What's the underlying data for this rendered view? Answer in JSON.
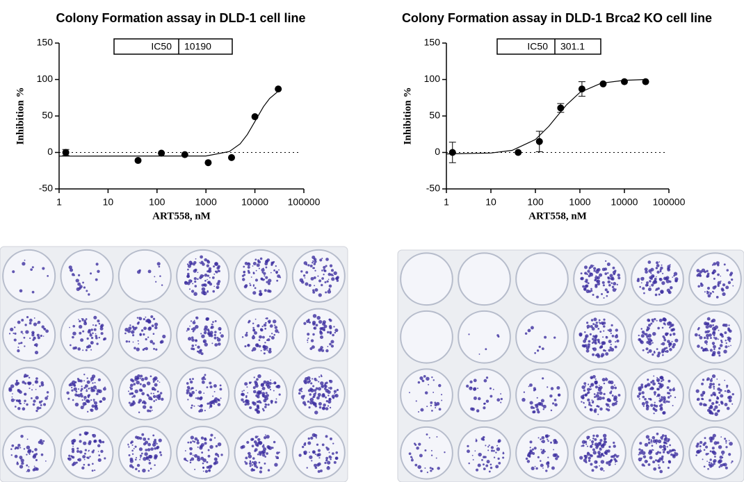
{
  "chart_data": [
    {
      "type": "scatter",
      "title": "Colony Formation assay in DLD-1 cell line",
      "xlabel": "ART558, nM",
      "ylabel": "Inhibition %",
      "xscale": "log",
      "xlim": [
        1,
        100000
      ],
      "xticks": [
        1,
        10,
        100,
        1000,
        10000,
        100000
      ],
      "ylim": [
        -50,
        150
      ],
      "yticks": [
        -50,
        0,
        50,
        100,
        150
      ],
      "hline": 0,
      "annotation": {
        "label": "IC50",
        "value": 10190
      },
      "series": [
        {
          "color": "#000000",
          "x": [
            1.37,
            41,
            123,
            370,
            1111,
            3333,
            10000,
            30000
          ],
          "values": [
            0,
            -11,
            -1,
            -3,
            -14,
            -7,
            49,
            87
          ],
          "errors": [
            4,
            null,
            null,
            null,
            null,
            null,
            null,
            null
          ]
        }
      ],
      "fit": {
        "x": [
          1,
          1000,
          3000,
          5000,
          7000,
          10000,
          15000,
          20000,
          30000
        ],
        "values": [
          -5,
          -4.9,
          1.2,
          11.8,
          24.6,
          42.5,
          63,
          74,
          84
        ]
      }
    },
    {
      "type": "scatter",
      "title": "Colony Formation assay in DLD-1 Brca2 KO cell line",
      "xlabel": "ART558, nM",
      "ylabel": "Inhibition %",
      "xscale": "log",
      "xlim": [
        1,
        100000
      ],
      "xticks": [
        1,
        10,
        100,
        1000,
        10000,
        100000
      ],
      "ylim": [
        -50,
        150
      ],
      "yticks": [
        -50,
        0,
        50,
        100,
        150
      ],
      "hline": 0,
      "annotation": {
        "label": "IC50",
        "value": 301.1
      },
      "series": [
        {
          "color": "#000000",
          "x": [
            1.37,
            41,
            123,
            370,
            1111,
            3333,
            10000,
            30000
          ],
          "values": [
            0,
            0,
            15,
            61,
            87,
            94,
            97,
            97
          ],
          "errors": [
            14,
            null,
            14,
            6,
            10,
            null,
            null,
            null
          ]
        }
      ],
      "fit": {
        "x": [
          1,
          10,
          30,
          100,
          200,
          300,
          500,
          1000,
          3000,
          10000,
          30000
        ],
        "values": [
          -2,
          -0.8,
          2.9,
          17.7,
          35.8,
          49,
          65.2,
          82.3,
          95,
          99,
          100
        ]
      }
    }
  ]
}
